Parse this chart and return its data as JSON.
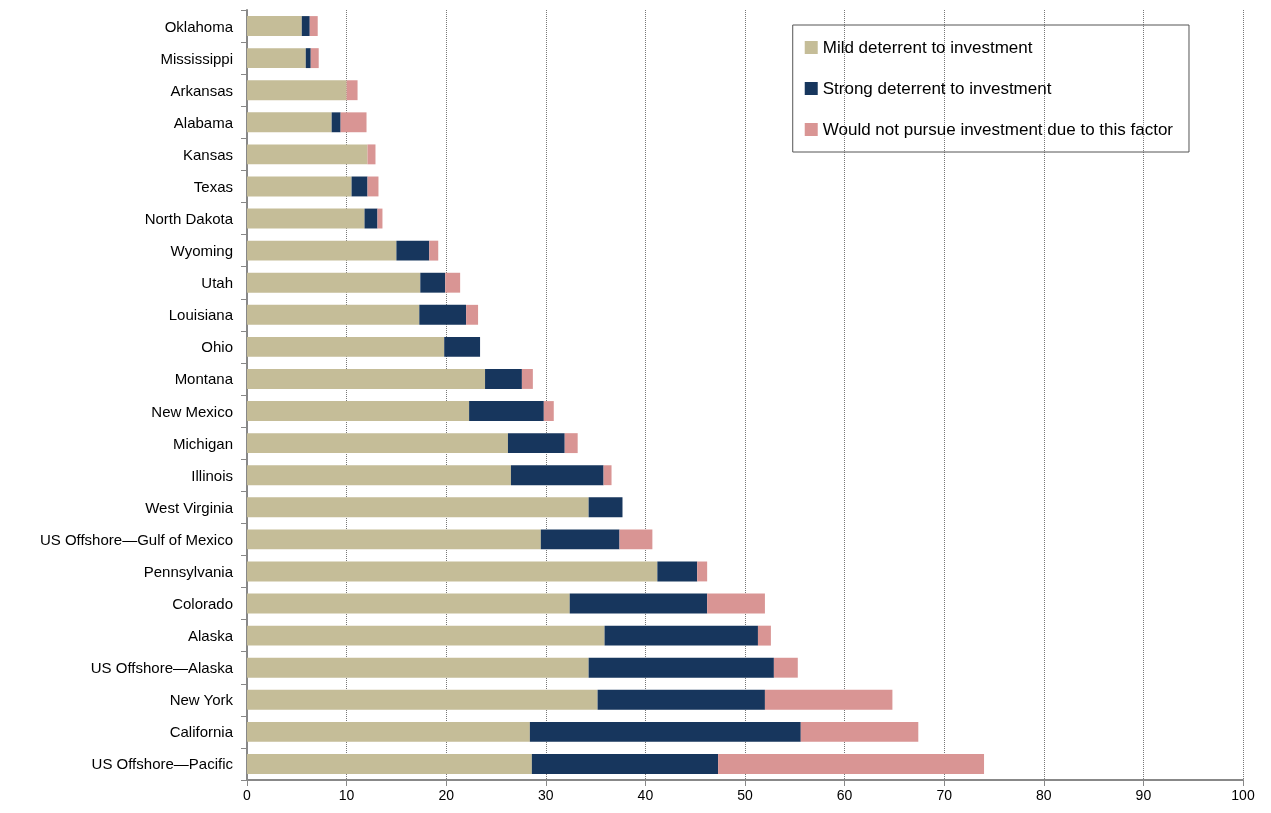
{
  "chart_data": {
    "type": "bar",
    "orientation": "horizontal",
    "stacked": true,
    "categories": [
      "Oklahoma",
      "Mississippi",
      "Arkansas",
      "Alabama",
      "Kansas",
      "Texas",
      "North Dakota",
      "Wyoming",
      "Utah",
      "Louisiana",
      "Ohio",
      "Montana",
      "New Mexico",
      "Michigan",
      "Illinois",
      "West Virginia",
      "US Offshore—Gulf of Mexico",
      "Pennsylvania",
      "Colorado",
      "Alaska",
      "US Offshore—Alaska",
      "New York",
      "California",
      "US Offshore—Pacific"
    ],
    "series": [
      {
        "name": "Mild deterrent to investment",
        "color": "#c5bd98",
        "values": [
          5.5,
          5.9,
          10.0,
          8.5,
          12.1,
          10.5,
          11.8,
          15.0,
          17.4,
          17.3,
          19.8,
          23.9,
          22.3,
          26.2,
          26.5,
          34.3,
          29.5,
          41.2,
          32.4,
          35.9,
          34.3,
          35.2,
          28.4,
          28.6
        ]
      },
      {
        "name": "Strong deterrent to investment",
        "color": "#17365d",
        "values": [
          0.8,
          0.5,
          0,
          0.9,
          0,
          1.6,
          1.3,
          3.3,
          2.5,
          4.7,
          3.6,
          3.7,
          7.5,
          5.7,
          9.3,
          3.4,
          7.9,
          4.0,
          13.8,
          15.4,
          18.6,
          16.8,
          27.2,
          18.7
        ]
      },
      {
        "name": "Would not pursue investment due to this factor",
        "color": "#d99594",
        "values": [
          0.8,
          0.8,
          1.1,
          2.6,
          0.8,
          1.1,
          0.5,
          0.9,
          1.5,
          1.2,
          0,
          1.1,
          1.0,
          1.3,
          0.8,
          0,
          3.3,
          1.0,
          5.8,
          1.3,
          2.4,
          12.8,
          11.8,
          26.7
        ]
      }
    ],
    "xlim": [
      0,
      100
    ],
    "xticks": [
      0,
      10,
      20,
      30,
      40,
      50,
      60,
      70,
      80,
      90,
      100
    ],
    "grid": "x",
    "legend": "top right"
  }
}
